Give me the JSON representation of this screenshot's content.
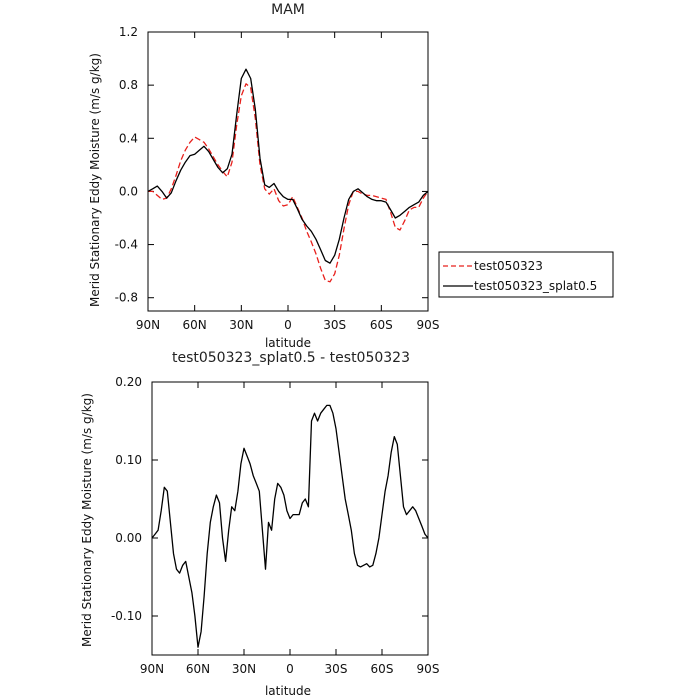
{
  "chart_data": [
    {
      "type": "line",
      "title": "MAM",
      "xlabel": "latitude",
      "ylabel": "Merid Stationary Eddy Moisture (m/s g/kg)",
      "x_ticks": [
        {
          "value": 90,
          "label": "90N"
        },
        {
          "value": 60,
          "label": "60N"
        },
        {
          "value": 30,
          "label": "30N"
        },
        {
          "value": 0,
          "label": "0"
        },
        {
          "value": -30,
          "label": "30S"
        },
        {
          "value": -60,
          "label": "60S"
        },
        {
          "value": -90,
          "label": "90S"
        }
      ],
      "xlim": [
        90,
        -90
      ],
      "y_ticks": [
        {
          "value": 1.2,
          "label": "1.2"
        },
        {
          "value": 0.8,
          "label": "0.8"
        },
        {
          "value": 0.4,
          "label": "0.4"
        },
        {
          "value": 0.0,
          "label": "0.0"
        },
        {
          "value": -0.4,
          "label": "-0.4"
        },
        {
          "value": -0.8,
          "label": "-0.8"
        }
      ],
      "ylim": [
        -0.9,
        1.2
      ],
      "grid": false,
      "legend_position": "right",
      "series": [
        {
          "name": "test050323",
          "color": "#e8201c",
          "dash": "dashed",
          "x": [
            90,
            87,
            84,
            81,
            78,
            75,
            72,
            69,
            66,
            63,
            60,
            57,
            54,
            51,
            48,
            45,
            42,
            39,
            36,
            33,
            30,
            27,
            24,
            21,
            18,
            15,
            12,
            9,
            6,
            3,
            0,
            -3,
            -6,
            -9,
            -12,
            -15,
            -18,
            -21,
            -24,
            -27,
            -30,
            -33,
            -36,
            -39,
            -42,
            -45,
            -48,
            -51,
            -54,
            -57,
            -60,
            -63,
            -66,
            -69,
            -72,
            -75,
            -78,
            -81,
            -84,
            -87,
            -90
          ],
          "y": [
            0.0,
            0.0,
            -0.03,
            -0.06,
            -0.05,
            0.02,
            0.12,
            0.23,
            0.31,
            0.37,
            0.41,
            0.39,
            0.37,
            0.32,
            0.26,
            0.2,
            0.15,
            0.11,
            0.22,
            0.5,
            0.72,
            0.81,
            0.78,
            0.55,
            0.2,
            0.02,
            -0.02,
            0.02,
            -0.07,
            -0.11,
            -0.1,
            -0.04,
            -0.12,
            -0.2,
            -0.3,
            -0.38,
            -0.47,
            -0.58,
            -0.67,
            -0.68,
            -0.62,
            -0.48,
            -0.28,
            -0.1,
            0.0,
            0.0,
            -0.02,
            -0.03,
            -0.03,
            -0.04,
            -0.05,
            -0.06,
            -0.16,
            -0.27,
            -0.29,
            -0.22,
            -0.14,
            -0.12,
            -0.12,
            -0.05,
            0.0
          ]
        },
        {
          "name": "test050323_splat0.5",
          "color": "#000000",
          "dash": "solid",
          "x": [
            90,
            87,
            84,
            81,
            78,
            75,
            72,
            69,
            66,
            63,
            60,
            57,
            54,
            51,
            48,
            45,
            42,
            39,
            36,
            33,
            30,
            27,
            24,
            21,
            18,
            15,
            12,
            9,
            6,
            3,
            0,
            -3,
            -6,
            -9,
            -12,
            -15,
            -18,
            -21,
            -24,
            -27,
            -30,
            -33,
            -36,
            -39,
            -42,
            -45,
            -48,
            -51,
            -54,
            -57,
            -60,
            -63,
            -66,
            -69,
            -72,
            -75,
            -78,
            -81,
            -84,
            -87,
            -90
          ],
          "y": [
            0.0,
            0.02,
            0.04,
            0.0,
            -0.05,
            -0.01,
            0.08,
            0.16,
            0.22,
            0.27,
            0.28,
            0.31,
            0.34,
            0.3,
            0.24,
            0.18,
            0.14,
            0.17,
            0.28,
            0.58,
            0.85,
            0.92,
            0.85,
            0.62,
            0.25,
            0.05,
            0.03,
            0.06,
            0.0,
            -0.04,
            -0.06,
            -0.06,
            -0.13,
            -0.21,
            -0.26,
            -0.3,
            -0.36,
            -0.44,
            -0.52,
            -0.54,
            -0.48,
            -0.36,
            -0.2,
            -0.06,
            0.0,
            0.02,
            -0.01,
            -0.04,
            -0.06,
            -0.07,
            -0.07,
            -0.08,
            -0.14,
            -0.2,
            -0.18,
            -0.15,
            -0.12,
            -0.1,
            -0.08,
            -0.03,
            0.0
          ]
        }
      ]
    },
    {
      "type": "line",
      "title": "test050323_splat0.5 - test050323",
      "xlabel": "latitude",
      "ylabel": "Merid Stationary Eddy Moisture (m/s g/kg)",
      "x_ticks": [
        {
          "value": 90,
          "label": "90N"
        },
        {
          "value": 60,
          "label": "60N"
        },
        {
          "value": 30,
          "label": "30N"
        },
        {
          "value": 0,
          "label": "0"
        },
        {
          "value": -30,
          "label": "30S"
        },
        {
          "value": -60,
          "label": "60S"
        },
        {
          "value": -90,
          "label": "90S"
        }
      ],
      "xlim": [
        90,
        -90
      ],
      "y_ticks": [
        {
          "value": 0.2,
          "label": "0.20"
        },
        {
          "value": 0.1,
          "label": "0.10"
        },
        {
          "value": 0.0,
          "label": "0.00"
        },
        {
          "value": -0.1,
          "label": "-0.10"
        }
      ],
      "ylim": [
        -0.15,
        0.2
      ],
      "grid": false,
      "series": [
        {
          "color": "#000000",
          "dash": "solid",
          "x": [
            90,
            88,
            86,
            84,
            82,
            80,
            78,
            76,
            74,
            72,
            70,
            68,
            66,
            64,
            62,
            60,
            58,
            56,
            54,
            52,
            50,
            48,
            46,
            44,
            42,
            40,
            38,
            36,
            34,
            32,
            30,
            28,
            26,
            24,
            22,
            20,
            18,
            16,
            14,
            12,
            10,
            8,
            6,
            4,
            2,
            0,
            -2,
            -4,
            -6,
            -8,
            -10,
            -12,
            -14,
            -16,
            -18,
            -20,
            -22,
            -24,
            -26,
            -28,
            -30,
            -32,
            -34,
            -36,
            -38,
            -40,
            -42,
            -44,
            -46,
            -48,
            -50,
            -52,
            -54,
            -56,
            -58,
            -60,
            -62,
            -64,
            -66,
            -68,
            -70,
            -72,
            -74,
            -76,
            -78,
            -80,
            -82,
            -84,
            -86,
            -88,
            -90
          ],
          "y": [
            0.0,
            0.005,
            0.01,
            0.035,
            0.065,
            0.06,
            0.02,
            -0.02,
            -0.04,
            -0.045,
            -0.035,
            -0.03,
            -0.05,
            -0.07,
            -0.1,
            -0.14,
            -0.12,
            -0.075,
            -0.02,
            0.02,
            0.04,
            0.055,
            0.045,
            0.0,
            -0.03,
            0.01,
            0.04,
            0.035,
            0.06,
            0.095,
            0.115,
            0.105,
            0.095,
            0.08,
            0.07,
            0.06,
            0.01,
            -0.04,
            0.02,
            0.01,
            0.05,
            0.07,
            0.065,
            0.055,
            0.035,
            0.025,
            0.03,
            0.03,
            0.03,
            0.045,
            0.05,
            0.04,
            0.15,
            0.16,
            0.15,
            0.16,
            0.165,
            0.17,
            0.17,
            0.16,
            0.14,
            0.11,
            0.08,
            0.05,
            0.03,
            0.01,
            -0.02,
            -0.035,
            -0.037,
            -0.035,
            -0.033,
            -0.037,
            -0.035,
            -0.02,
            0.0,
            0.03,
            0.06,
            0.08,
            0.11,
            0.13,
            0.12,
            0.08,
            0.04,
            0.03,
            0.035,
            0.04,
            0.035,
            0.025,
            0.015,
            0.005,
            0.0
          ]
        }
      ]
    }
  ]
}
